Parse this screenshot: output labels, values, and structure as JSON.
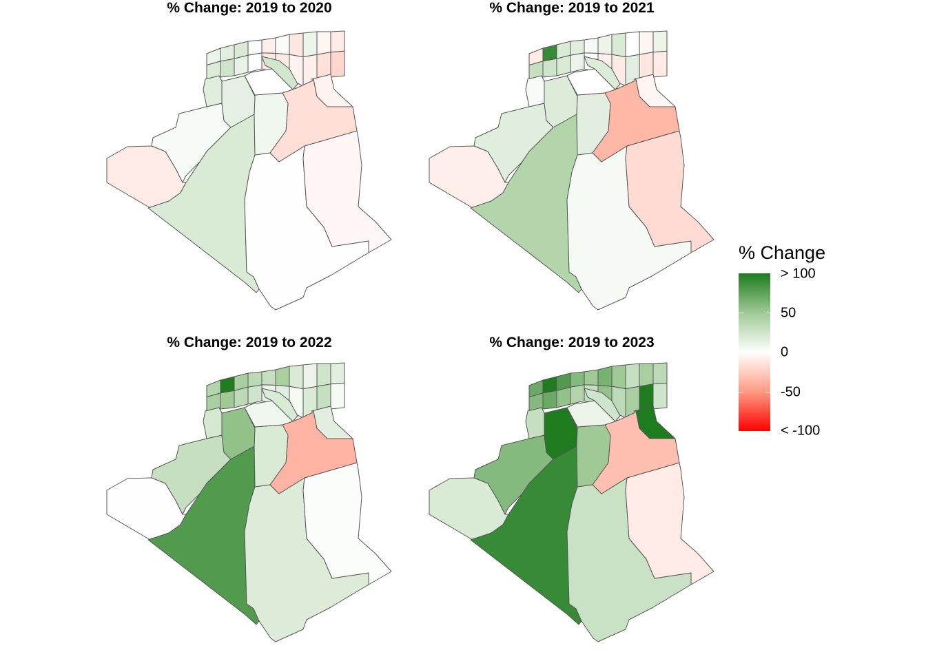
{
  "chart_data": {
    "type": "choropleth",
    "color_scale": {
      "title": "% Change",
      "stops": [
        {
          "value": 100,
          "color": "#1e7b1e"
        },
        {
          "value": 50,
          "color": "#9fca96"
        },
        {
          "value": 0,
          "color": "#ffffff"
        },
        {
          "value": -50,
          "color": "#ff9b84"
        },
        {
          "value": -100,
          "color": "#ff0000"
        }
      ],
      "labels": [
        "> 100",
        "50",
        "0",
        "-50",
        "< -100"
      ]
    },
    "region_keys": [
      "southwest",
      "west",
      "adrar",
      "tamanrasset",
      "illizi",
      "ouargla",
      "ghardaia",
      "el-bayadh",
      "naama",
      "laghouat",
      "biskra",
      "el-oued"
    ],
    "panels": [
      {
        "title": "% Change: 2019 to 2020",
        "values": [
          -10,
          4,
          20,
          1,
          -4,
          -16,
          8,
          14,
          16,
          0,
          24,
          -6
        ],
        "north_values": [
          10,
          15,
          20,
          2,
          -8,
          3,
          -12,
          10,
          -5,
          -10,
          18,
          25,
          12,
          0,
          -12,
          -10,
          -6,
          -8,
          -15,
          -20
        ]
      },
      {
        "title": "% Change: 2019 to 2021",
        "values": [
          -8,
          16,
          40,
          5,
          -18,
          -36,
          15,
          18,
          4,
          0,
          18,
          -5
        ],
        "north_values": [
          -10,
          90,
          20,
          15,
          5,
          10,
          20,
          0,
          -5,
          10,
          30,
          25,
          20,
          10,
          0,
          -8,
          -10,
          15,
          -12,
          -10
        ]
      },
      {
        "title": "% Change: 2019 to 2022",
        "values": [
          1,
          30,
          80,
          18,
          2,
          -38,
          20,
          55,
          22,
          8,
          20,
          15
        ],
        "north_values": [
          40,
          120,
          45,
          35,
          30,
          45,
          20,
          10,
          25,
          15,
          45,
          50,
          35,
          25,
          10,
          15,
          5,
          20,
          30,
          5
        ]
      },
      {
        "title": "% Change: 2019 to 2023",
        "values": [
          20,
          60,
          90,
          28,
          -10,
          -32,
          50,
          100,
          30,
          10,
          25,
          130
        ],
        "north_values": [
          70,
          130,
          80,
          60,
          50,
          65,
          50,
          30,
          45,
          35,
          60,
          70,
          55,
          40,
          30,
          55,
          35,
          45,
          120,
          25
        ]
      }
    ]
  }
}
